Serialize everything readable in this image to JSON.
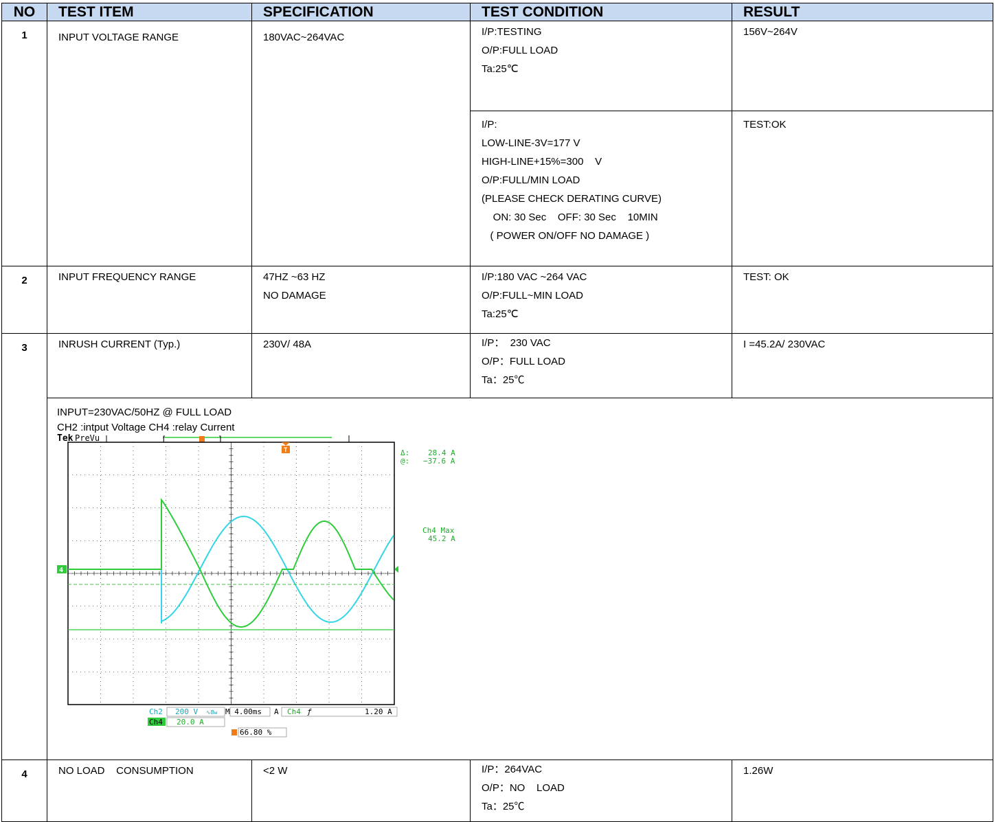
{
  "header": {
    "no": "NO",
    "test_item": "TEST ITEM",
    "specification": "SPECIFICATION",
    "test_condition": "TEST CONDITION",
    "result": "RESULT"
  },
  "rows": [
    {
      "no": "1",
      "item": "INPUT VOLTAGE RANGE",
      "spec": [
        "180VAC~264VAC"
      ],
      "sub": [
        {
          "condition": [
            "I/P:TESTING",
            "O/P:FULL LOAD",
            "Ta:25℃"
          ],
          "result": "156V~264V"
        },
        {
          "condition": [
            "I/P:",
            "LOW-LINE-3V=177 V",
            "HIGH-LINE+15%=300    V",
            "O/P:FULL/MIN LOAD",
            "(PLEASE CHECK DERATING CURVE)",
            "    ON: 30 Sec    OFF: 30 Sec    10MIN",
            "   ( POWER ON/OFF NO DAMAGE )"
          ],
          "result": "TEST:OK"
        }
      ]
    },
    {
      "no": "2",
      "item": "INPUT FREQUENCY RANGE",
      "spec": [
        "47HZ ~63 HZ",
        "NO DAMAGE"
      ],
      "condition": [
        "I/P:180 VAC ~264 VAC",
        "O/P:FULL~MIN LOAD",
        "Ta:25℃"
      ],
      "result": "TEST: OK"
    },
    {
      "no": "3",
      "item": "INRUSH CURRENT (Typ.)",
      "spec": [
        "230V/ 48A"
      ],
      "condition": [
        "I/P：  230 VAC",
        "O/P：FULL LOAD",
        "Ta：25℃"
      ],
      "result": "I =45.2A/ 230VAC"
    },
    {
      "no": "4",
      "item": "NO LOAD    CONSUMPTION",
      "spec": [
        "<2 W"
      ],
      "condition": [
        "I/P：264VAC",
        "O/P：NO    LOAD",
        "Ta：25℃"
      ],
      "result": "1.26W"
    }
  ],
  "scope": {
    "caption1": "INPUT=230VAC/50HZ @ FULL LOAD",
    "caption2": "CH2 :intput Voltage CH4 :relay Current",
    "brand": "Tek",
    "mode": "PreVu",
    "trigger_marker": "T",
    "channel_marker": "4",
    "delta_label": "Δ:",
    "delta_value": "28.4 A",
    "at_label": "@:",
    "at_value": "−37.6 A",
    "max_label": "Ch4 Max",
    "max_value": "45.2 A",
    "ch2_label": "Ch2",
    "ch2_scale": "200 V",
    "ch2_coupling": "∿Bw",
    "timebase": "M 4.00ms",
    "trig_mode": "A",
    "trig_channel": "Ch4",
    "trig_slope": "ƒ",
    "trig_level": "1.20 A",
    "ch4_label": "Ch4",
    "ch4_scale": "20.0 A",
    "trig_position": "66.80 %",
    "colors": {
      "ch2": "#33d6e6",
      "ch4": "#2ecc3a",
      "trigger": "#f07d1a",
      "grid": "#000000"
    }
  }
}
